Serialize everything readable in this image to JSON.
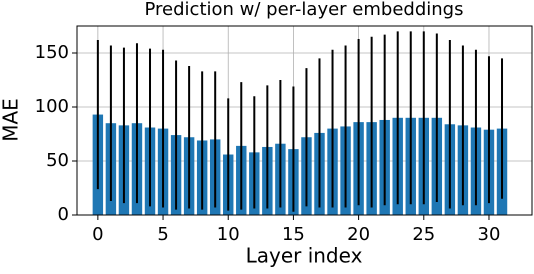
{
  "chart_data": {
    "type": "bar",
    "title": "Prediction w/ per-layer embeddings",
    "x_label": "Layer index",
    "y_label": "MAE",
    "x": [
      0,
      1,
      2,
      3,
      4,
      5,
      6,
      7,
      8,
      9,
      10,
      11,
      12,
      13,
      14,
      15,
      16,
      17,
      18,
      19,
      20,
      21,
      22,
      23,
      24,
      25,
      26,
      27,
      28,
      29,
      30,
      31
    ],
    "values": [
      93,
      85,
      83,
      85,
      81,
      80,
      74,
      72,
      69,
      70,
      56,
      64,
      58,
      63,
      66,
      61,
      72,
      76,
      80,
      82,
      86,
      86,
      88,
      90,
      90,
      90,
      90,
      84,
      83,
      81,
      79,
      80
    ],
    "errors": [
      69,
      72,
      72,
      74,
      73,
      73,
      69,
      66,
      64,
      63,
      52,
      59,
      52,
      57,
      59,
      58,
      64,
      69,
      73,
      75,
      77,
      79,
      79,
      80,
      80,
      80,
      78,
      78,
      74,
      72,
      68,
      65
    ],
    "color": "#1f77b4",
    "error_color": "#000000",
    "xlim": [
      -1.6,
      33.3
    ],
    "xticks": [
      0,
      5,
      10,
      15,
      20,
      25,
      30
    ],
    "ylim": [
      0,
      175
    ],
    "yticks": [
      0,
      50,
      100,
      150
    ],
    "grid": true
  }
}
